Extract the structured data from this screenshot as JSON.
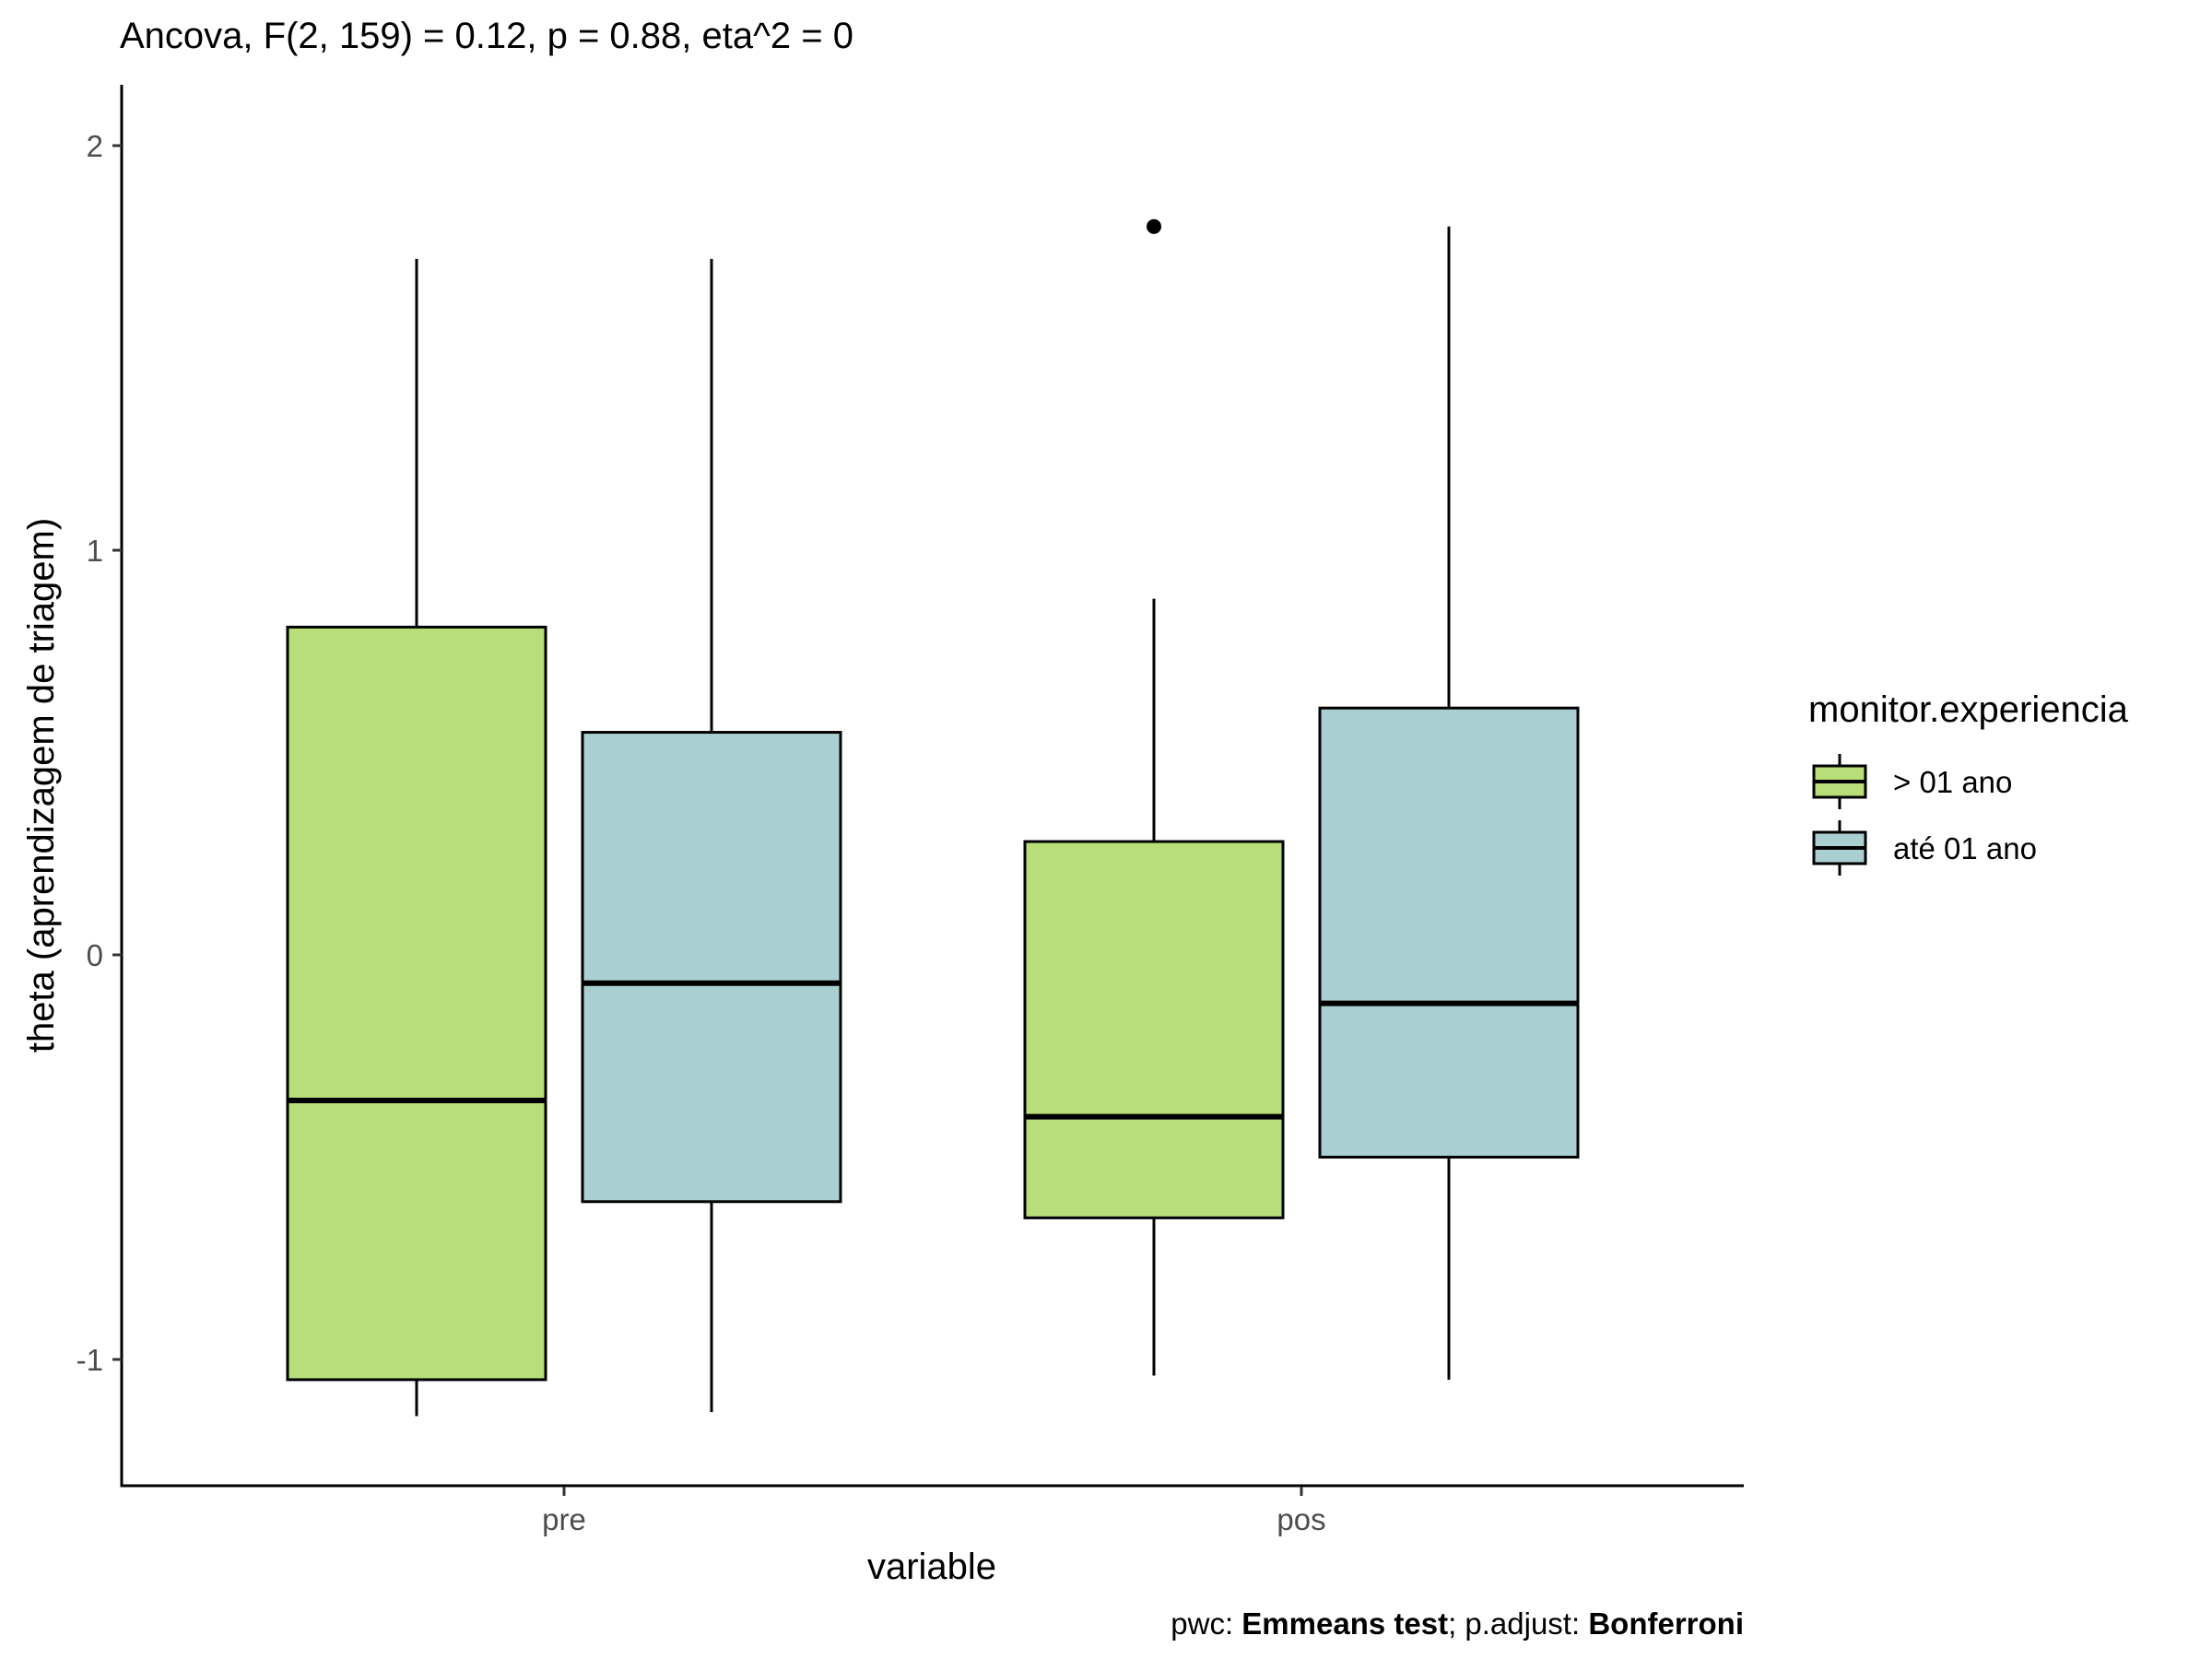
{
  "chart_data": {
    "type": "boxplot",
    "title": "Ancova, F(2, 159) = 0.12, p = 0.88, eta^2 = 0",
    "xlabel": "variable",
    "ylabel": "theta (aprendizagem de triagem)",
    "categories": [
      "pre",
      "pos"
    ],
    "ylim": [
      -1.3,
      2.15
    ],
    "yticks": [
      -1,
      0,
      1,
      2
    ],
    "ytick_labels": [
      "-1",
      "0",
      "1",
      "2"
    ],
    "grid": false,
    "legend": {
      "title": "monitor.experiencia",
      "position": "right",
      "entries": [
        {
          "label": "> 01 ano",
          "color": "#b8de7a"
        },
        {
          "label": "até 01 ano",
          "color": "#a9cfd1"
        }
      ]
    },
    "series": [
      {
        "name": "> 01 ano",
        "color": "#b8de7a",
        "boxes": [
          {
            "category": "pre",
            "whisker_low": -1.14,
            "q1": -1.05,
            "median": -0.36,
            "q3": 0.81,
            "whisker_high": 1.72,
            "outliers": []
          },
          {
            "category": "pos",
            "whisker_low": -1.04,
            "q1": -0.65,
            "median": -0.4,
            "q3": 0.28,
            "whisker_high": 0.88,
            "outliers": [
              1.8
            ]
          }
        ]
      },
      {
        "name": "até 01 ano",
        "color": "#a9cfd1",
        "boxes": [
          {
            "category": "pre",
            "whisker_low": -1.13,
            "q1": -0.61,
            "median": -0.07,
            "q3": 0.55,
            "whisker_high": 1.72,
            "outliers": []
          },
          {
            "category": "pos",
            "whisker_low": -1.05,
            "q1": -0.5,
            "median": -0.12,
            "q3": 0.61,
            "whisker_high": 1.8,
            "outliers": []
          }
        ]
      }
    ],
    "caption": {
      "prefix": "pwc: ",
      "test": "Emmeans test",
      "sep": "; p.adjust: ",
      "adjust": "Bonferroni"
    }
  }
}
